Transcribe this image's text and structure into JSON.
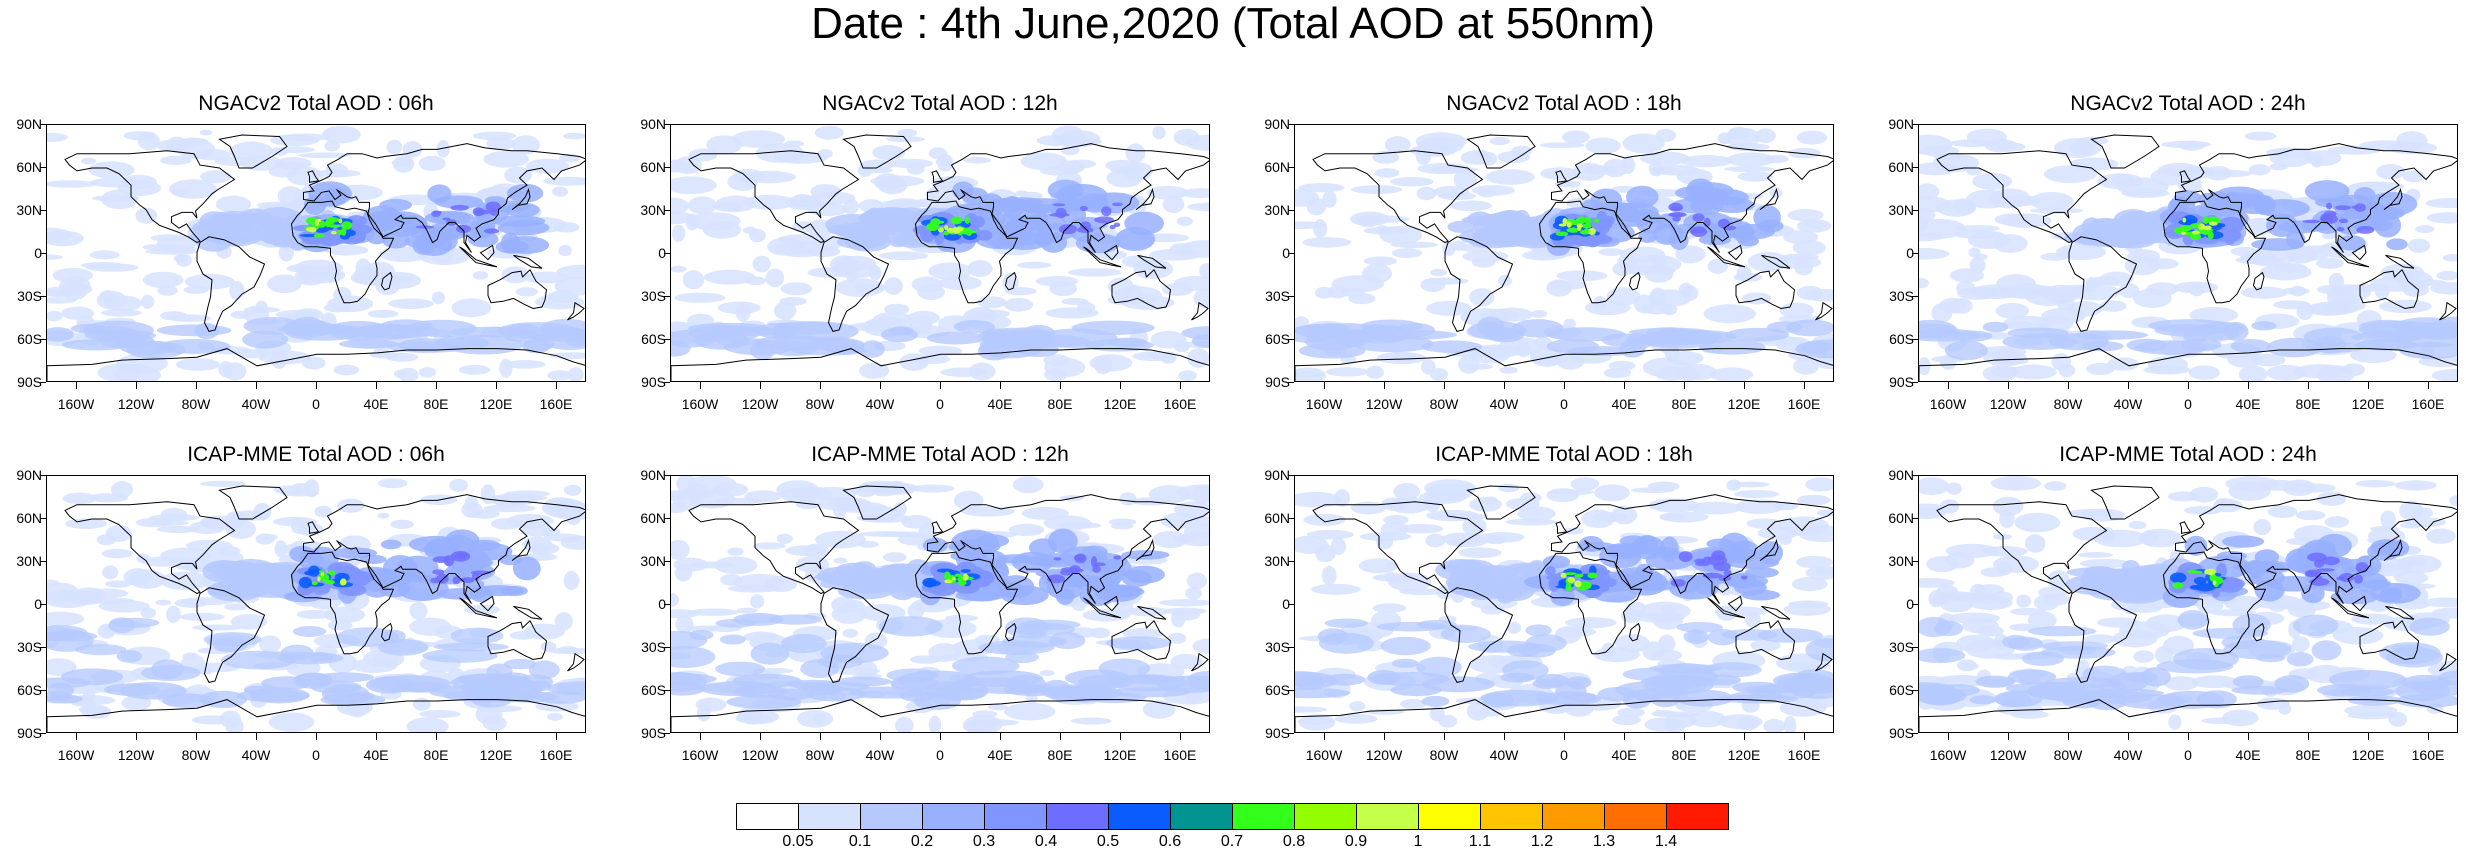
{
  "title": "Date : 4th June,2020 (Total AOD at 550nm)",
  "panels": [
    {
      "title": "NGACv2 Total AOD : 06h",
      "model": "NGACv2",
      "hour": "06h"
    },
    {
      "title": "NGACv2 Total AOD : 12h",
      "model": "NGACv2",
      "hour": "12h"
    },
    {
      "title": "NGACv2 Total AOD : 18h",
      "model": "NGACv2",
      "hour": "18h"
    },
    {
      "title": "NGACv2 Total AOD : 24h",
      "model": "NGACv2",
      "hour": "24h"
    },
    {
      "title": "ICAP-MME Total AOD : 06h",
      "model": "ICAP-MME",
      "hour": "06h"
    },
    {
      "title": "ICAP-MME Total AOD : 12h",
      "model": "ICAP-MME",
      "hour": "12h"
    },
    {
      "title": "ICAP-MME Total AOD : 18h",
      "model": "ICAP-MME",
      "hour": "18h"
    },
    {
      "title": "ICAP-MME Total AOD : 24h",
      "model": "ICAP-MME",
      "hour": "24h"
    }
  ],
  "lat_labels": [
    "90N",
    "60N",
    "30N",
    "0",
    "30S",
    "60S",
    "90S"
  ],
  "lon_labels": [
    "160W",
    "120W",
    "80W",
    "40W",
    "0",
    "40E",
    "80E",
    "120E",
    "160E"
  ],
  "colorbar": {
    "labels": [
      "0.05",
      "0.1",
      "0.2",
      "0.3",
      "0.4",
      "0.5",
      "0.6",
      "0.7",
      "0.8",
      "0.9",
      "1",
      "1.1",
      "1.2",
      "1.3",
      "1.4"
    ],
    "colors": [
      "#ffffff",
      "#d6e2ff",
      "#b5c9ff",
      "#98b0ff",
      "#8095ff",
      "#6d6dff",
      "#0a5cff",
      "#009591",
      "#33ff1a",
      "#94ff00",
      "#c4ff4a",
      "#ffff00",
      "#ffc400",
      "#ff9a00",
      "#ff6e00",
      "#ff1a00"
    ]
  }
}
